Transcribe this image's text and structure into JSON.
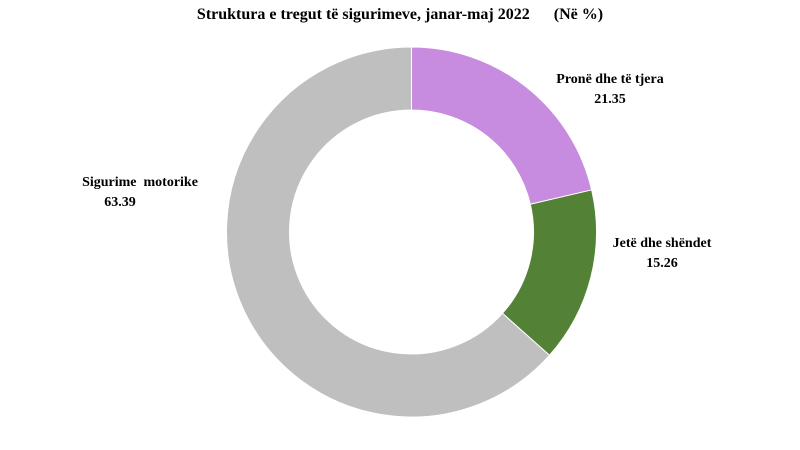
{
  "chart_data": {
    "type": "pie",
    "donut": true,
    "title": "Struktura e tregut të sigurimeve, janar-maj 2022",
    "unit": "(Në %)",
    "slices": [
      {
        "label": "Pronë dhe të tjera",
        "value": 21.35,
        "value_label": "21.35",
        "color": "#C78BE0"
      },
      {
        "label": "Jetë dhe shëndet",
        "value": 15.26,
        "value_label": "15.26",
        "color": "#538135"
      },
      {
        "label": "Sigurime  motorike",
        "value": 63.39,
        "value_label": "63.39",
        "color": "#BFBFBF"
      }
    ],
    "start": "top",
    "direction": "clockwise",
    "legend": "none"
  }
}
